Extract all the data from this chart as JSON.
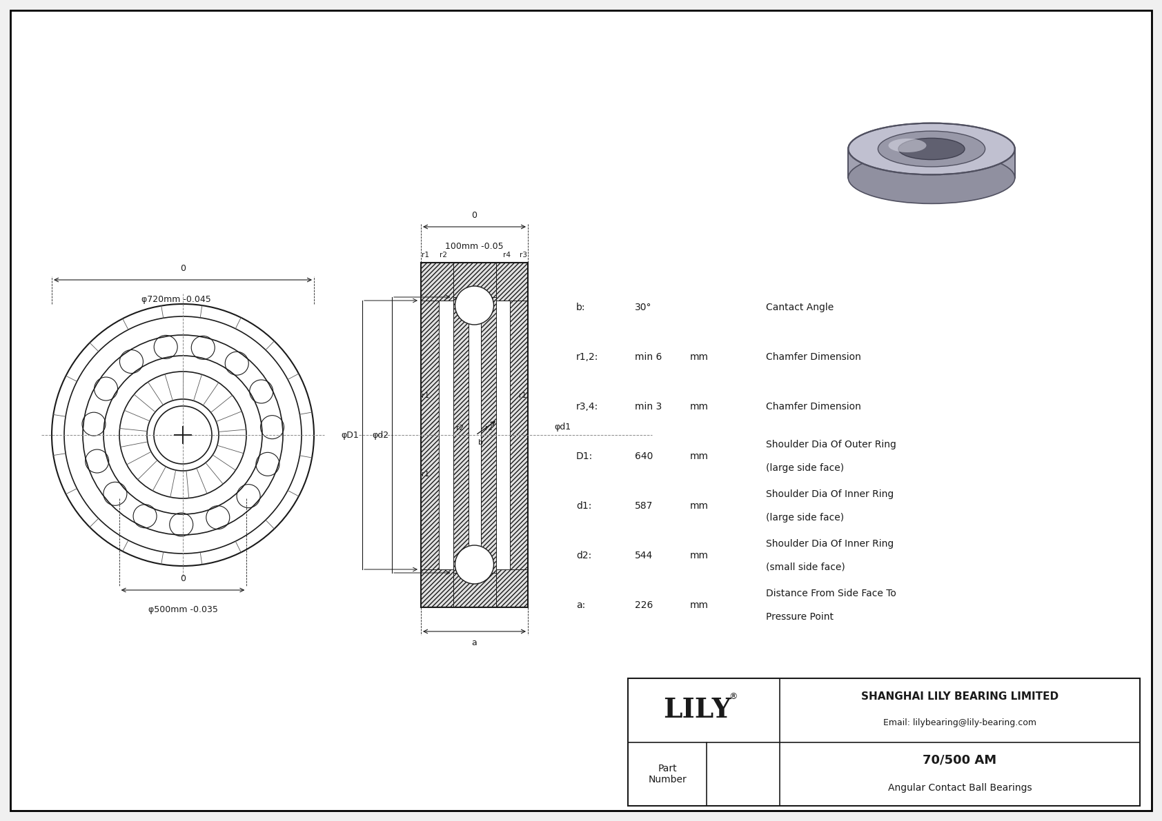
{
  "bg_color": "#f0f0f0",
  "drawing_bg": "#ffffff",
  "border_color": "#000000",
  "line_color": "#1a1a1a",
  "title": "70/500 AM",
  "subtitle": "Angular Contact Ball Bearings",
  "company": "SHANGHAI LILY BEARING LIMITED",
  "email": "Email: lilybearing@lily-bearing.com",
  "logo": "LILY",
  "outer_dim_label": "φ720mm -0.045",
  "outer_dim_top": "0",
  "inner_dim_label": "φ500mm -0.035",
  "inner_dim_top": "0",
  "width_dim_label": "100mm -0.05",
  "width_dim_top": "0",
  "params": [
    {
      "symbol": "b:",
      "value": "30°",
      "unit": "",
      "desc": "Cantact Angle"
    },
    {
      "symbol": "r1,2:",
      "value": "min 6",
      "unit": "mm",
      "desc": "Chamfer Dimension"
    },
    {
      "symbol": "r3,4:",
      "value": "min 3",
      "unit": "mm",
      "desc": "Chamfer Dimension"
    },
    {
      "symbol": "D1:",
      "value": "640",
      "unit": "mm",
      "desc": "Shoulder Dia Of Outer Ring\n(large side face)"
    },
    {
      "symbol": "d1:",
      "value": "587",
      "unit": "mm",
      "desc": "Shoulder Dia Of Inner Ring\n(large side face)"
    },
    {
      "symbol": "d2:",
      "value": "544",
      "unit": "mm",
      "desc": "Shoulder Dia Of Inner Ring\n(small side face)"
    },
    {
      "symbol": "a:",
      "value": "226",
      "unit": "mm",
      "desc": "Distance From Side Face To\nPressure Point"
    }
  ],
  "dim_a_label": "a"
}
